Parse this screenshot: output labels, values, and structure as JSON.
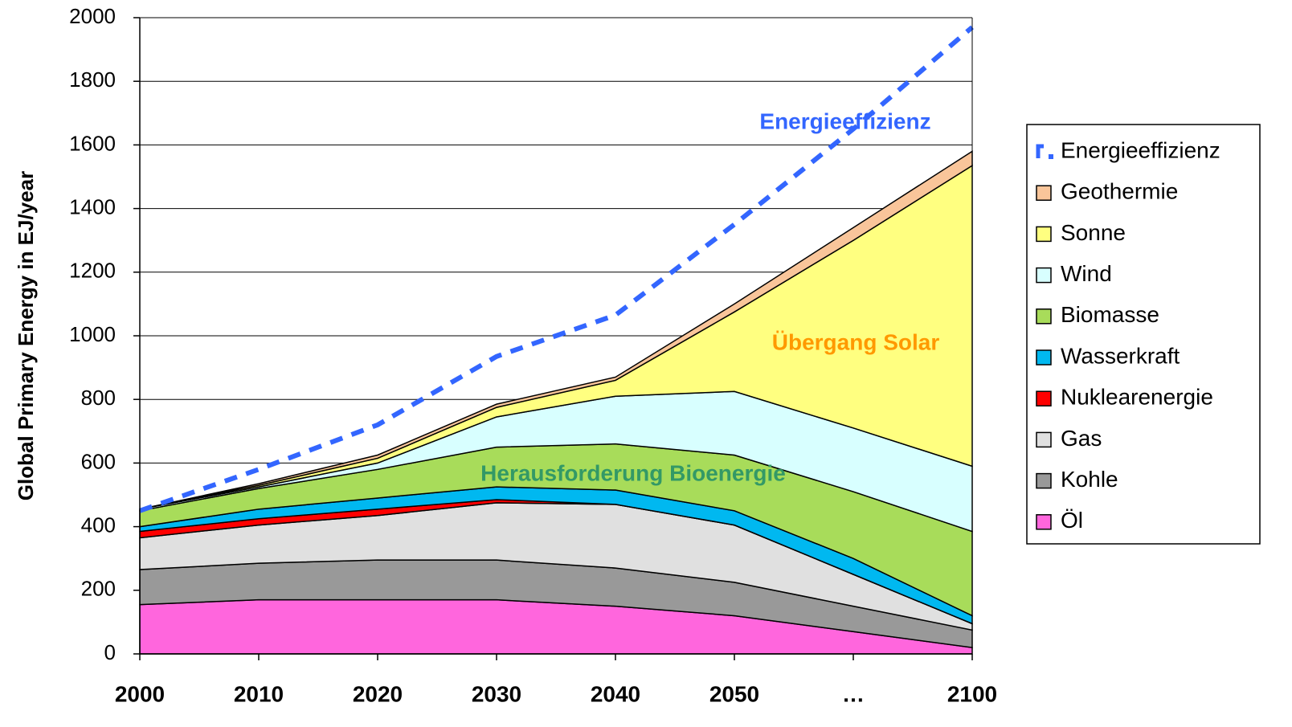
{
  "chart_data": {
    "type": "stacked_area",
    "y_label": "Global Primary Energy in EJ/year",
    "categories": [
      "2000",
      "2010",
      "2020",
      "2030",
      "2040",
      "2050",
      "…",
      "2100"
    ],
    "ylim": [
      0,
      2000
    ],
    "yticks": [
      0,
      200,
      400,
      600,
      800,
      1000,
      1200,
      1400,
      1600,
      1800,
      2000
    ],
    "grid": true,
    "legend": "right",
    "series": [
      {
        "name": "Öl",
        "color": "#ff66dd",
        "values": [
          155,
          170,
          170,
          170,
          150,
          120,
          70,
          20
        ]
      },
      {
        "name": "Kohle",
        "color": "#999999",
        "values": [
          110,
          115,
          125,
          125,
          120,
          105,
          80,
          55
        ]
      },
      {
        "name": "Gas",
        "color": "#e0e0e0",
        "values": [
          100,
          120,
          140,
          180,
          200,
          180,
          100,
          20
        ]
      },
      {
        "name": "Nuklearenergie",
        "color": "#ff0000",
        "values": [
          20,
          20,
          20,
          10,
          0,
          0,
          0,
          0
        ]
      },
      {
        "name": "Wasserkraft",
        "color": "#00b8f0",
        "values": [
          15,
          30,
          35,
          40,
          45,
          45,
          50,
          25
        ]
      },
      {
        "name": "Biomasse",
        "color": "#a8dc5a",
        "values": [
          50,
          65,
          90,
          125,
          145,
          175,
          210,
          265
        ]
      },
      {
        "name": "Wind",
        "color": "#d8ffff",
        "values": [
          5,
          5,
          20,
          95,
          150,
          200,
          200,
          205
        ]
      },
      {
        "name": "Sonne",
        "color": "#ffff80",
        "values": [
          0,
          5,
          15,
          30,
          50,
          250,
          590,
          945
        ]
      },
      {
        "name": "Geothermie",
        "color": "#f9c59a",
        "values": [
          0,
          5,
          10,
          10,
          10,
          25,
          40,
          45
        ]
      },
      {
        "name": "Energieeffizienz",
        "color": "#3366ff",
        "kind": "dashed_line",
        "values": [
          450,
          580,
          720,
          935,
          1065,
          1350,
          1650,
          1970
        ]
      }
    ],
    "annotations": [
      {
        "text": "Energieeffizienz",
        "color": "#3366ff"
      },
      {
        "text": "Übergang Solar",
        "color": "#ff9900"
      },
      {
        "text": "Herausforderung Bioenergie",
        "color": "#339966"
      }
    ]
  }
}
